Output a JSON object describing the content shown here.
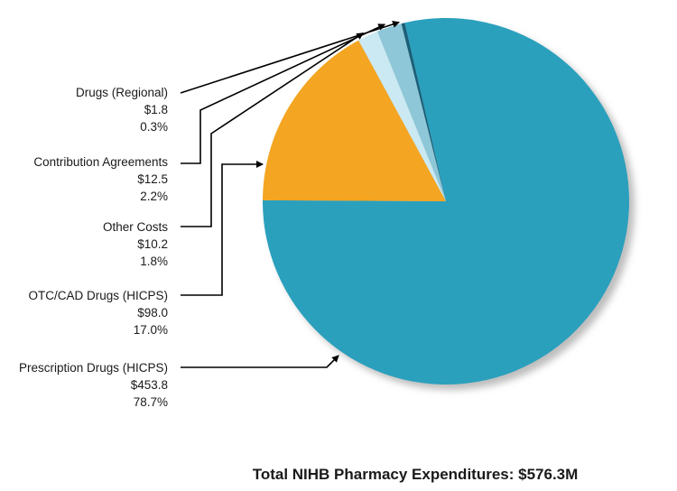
{
  "chart_data": {
    "type": "pie",
    "slices": [
      {
        "label": "Prescription Drugs (HICPS)",
        "amount": "$453.8",
        "percent": "78.7%",
        "value": 78.7,
        "color": "#2aa0bd"
      },
      {
        "label": "OTC/CAD Drugs (HICPS)",
        "amount": "$98.0",
        "percent": "17.0%",
        "value": 17.0,
        "color": "#f4a521"
      },
      {
        "label": "Other Costs",
        "amount": "$10.2",
        "percent": "1.8%",
        "value": 1.8,
        "color": "#cbe9f2"
      },
      {
        "label": "Contribution Agreements",
        "amount": "$12.5",
        "percent": "2.2%",
        "value": 2.2,
        "color": "#8dc7d8"
      },
      {
        "label": "Drugs (Regional)",
        "amount": "$1.8",
        "percent": "0.3%",
        "value": 0.3,
        "color": "#1b5f78"
      }
    ],
    "legend": "left, with arrows"
  },
  "footer": {
    "total": "Total NIHB Pharmacy Expenditures: $576.3M"
  }
}
